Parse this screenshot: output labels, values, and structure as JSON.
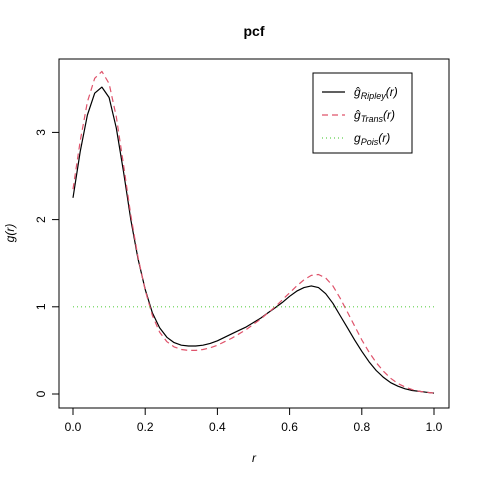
{
  "chart_data": {
    "type": "line",
    "title": "pcf",
    "xlabel": "r",
    "ylabel": "g(r)",
    "xlim": [
      0,
      1
    ],
    "ylim": [
      0,
      3.55
    ],
    "x_ticks": [
      0,
      0.2,
      0.4,
      0.6,
      0.8,
      1
    ],
    "x_tick_labels": [
      "0.0",
      "0.2",
      "0.4",
      "0.6",
      "0.8",
      "1.0"
    ],
    "y_ticks": [
      0,
      1,
      2,
      3
    ],
    "y_tick_labels": [
      "0",
      "1",
      "2",
      "3"
    ],
    "grid": false,
    "legend_position": "top-right",
    "legend": [
      {
        "symbol": "ĝ",
        "sub": "Ripley",
        "tail": "(r)"
      },
      {
        "symbol": "ĝ",
        "sub": "Trans",
        "tail": "(r)"
      },
      {
        "symbol": "g",
        "sub": "Pois",
        "tail": "(r)"
      }
    ],
    "series": [
      {
        "key": "ripley",
        "color": "#000000",
        "dash": "",
        "x": [
          0,
          0.02,
          0.04,
          0.06,
          0.08,
          0.1,
          0.12,
          0.14,
          0.16,
          0.18,
          0.2,
          0.22,
          0.24,
          0.26,
          0.28,
          0.3,
          0.32,
          0.34,
          0.36,
          0.38,
          0.4,
          0.42,
          0.44,
          0.46,
          0.48,
          0.5,
          0.52,
          0.54,
          0.56,
          0.58,
          0.6,
          0.62,
          0.64,
          0.66,
          0.68,
          0.7,
          0.72,
          0.74,
          0.76,
          0.78,
          0.8,
          0.82,
          0.84,
          0.86,
          0.88,
          0.9,
          0.92,
          0.94,
          0.96,
          0.98,
          1.0
        ],
        "y": [
          2.25,
          2.78,
          3.2,
          3.45,
          3.52,
          3.4,
          3.05,
          2.55,
          2.0,
          1.55,
          1.2,
          0.93,
          0.76,
          0.65,
          0.59,
          0.56,
          0.55,
          0.55,
          0.56,
          0.58,
          0.61,
          0.65,
          0.69,
          0.73,
          0.77,
          0.82,
          0.87,
          0.93,
          0.99,
          1.05,
          1.12,
          1.18,
          1.22,
          1.24,
          1.22,
          1.15,
          1.04,
          0.9,
          0.76,
          0.62,
          0.49,
          0.37,
          0.27,
          0.19,
          0.13,
          0.09,
          0.06,
          0.04,
          0.03,
          0.02,
          0.01
        ]
      },
      {
        "key": "trans",
        "color": "#DF536B",
        "dash": "6,4",
        "x": [
          0,
          0.02,
          0.04,
          0.06,
          0.08,
          0.1,
          0.12,
          0.14,
          0.16,
          0.18,
          0.2,
          0.22,
          0.24,
          0.26,
          0.28,
          0.3,
          0.32,
          0.34,
          0.36,
          0.38,
          0.4,
          0.42,
          0.44,
          0.46,
          0.48,
          0.5,
          0.52,
          0.54,
          0.56,
          0.58,
          0.6,
          0.62,
          0.64,
          0.66,
          0.68,
          0.7,
          0.72,
          0.74,
          0.76,
          0.78,
          0.8,
          0.82,
          0.84,
          0.86,
          0.88,
          0.9,
          0.92,
          0.94,
          0.96,
          0.98,
          1.0
        ],
        "y": [
          2.35,
          2.9,
          3.35,
          3.62,
          3.7,
          3.56,
          3.18,
          2.63,
          2.05,
          1.57,
          1.19,
          0.9,
          0.71,
          0.6,
          0.54,
          0.51,
          0.5,
          0.5,
          0.51,
          0.53,
          0.56,
          0.6,
          0.64,
          0.69,
          0.74,
          0.8,
          0.86,
          0.93,
          1.0,
          1.08,
          1.16,
          1.24,
          1.31,
          1.36,
          1.37,
          1.33,
          1.24,
          1.1,
          0.94,
          0.78,
          0.62,
          0.48,
          0.36,
          0.26,
          0.18,
          0.12,
          0.08,
          0.05,
          0.03,
          0.02,
          0.01
        ]
      },
      {
        "key": "pois",
        "color": "#61D04F",
        "dash": "1,3",
        "x": [
          0,
          1
        ],
        "y": [
          1,
          1
        ]
      }
    ]
  }
}
